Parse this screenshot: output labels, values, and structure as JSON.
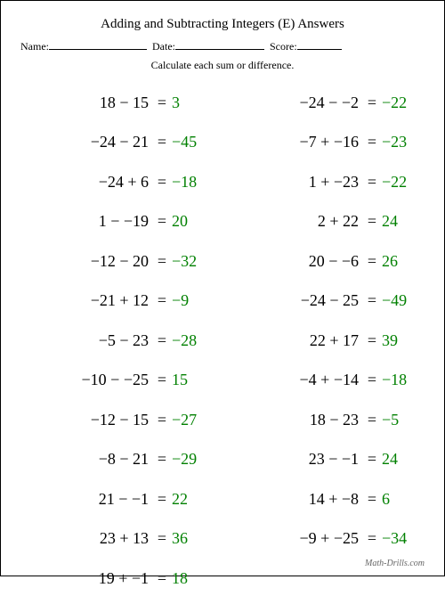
{
  "title": "Adding and Subtracting Integers (E) Answers",
  "labels": {
    "name": "Name:",
    "date": "Date:",
    "score": "Score:"
  },
  "instructions": "Calculate each sum or difference.",
  "answer_color": "#008000",
  "text_color": "#000000",
  "left_problems": [
    {
      "a": "18",
      "op": "−",
      "b": "15",
      "ans": "3"
    },
    {
      "a": "−24",
      "op": "−",
      "b": "21",
      "ans": "−45"
    },
    {
      "a": "−24",
      "op": "+",
      "b": "6",
      "ans": "−18"
    },
    {
      "a": "1",
      "op": "−",
      "b": "−19",
      "ans": "20"
    },
    {
      "a": "−12",
      "op": "−",
      "b": "20",
      "ans": "−32"
    },
    {
      "a": "−21",
      "op": "+",
      "b": "12",
      "ans": "−9"
    },
    {
      "a": "−5",
      "op": "−",
      "b": "23",
      "ans": "−28"
    },
    {
      "a": "−10",
      "op": "−",
      "b": "−25",
      "ans": "15"
    },
    {
      "a": "−12",
      "op": "−",
      "b": "15",
      "ans": "−27"
    },
    {
      "a": "−8",
      "op": "−",
      "b": "21",
      "ans": "−29"
    },
    {
      "a": "21",
      "op": "−",
      "b": "−1",
      "ans": "22"
    },
    {
      "a": "23",
      "op": "+",
      "b": "13",
      "ans": "36"
    },
    {
      "a": "19",
      "op": "+",
      "b": "−1",
      "ans": "18"
    }
  ],
  "right_problems": [
    {
      "a": "−24",
      "op": "−",
      "b": "−2",
      "ans": "−22"
    },
    {
      "a": "−7",
      "op": "+",
      "b": "−16",
      "ans": "−23"
    },
    {
      "a": "1",
      "op": "+",
      "b": "−23",
      "ans": "−22"
    },
    {
      "a": "2",
      "op": "+",
      "b": "22",
      "ans": "24"
    },
    {
      "a": "20",
      "op": "−",
      "b": "−6",
      "ans": "26"
    },
    {
      "a": "−24",
      "op": "−",
      "b": "25",
      "ans": "−49"
    },
    {
      "a": "22",
      "op": "+",
      "b": "17",
      "ans": "39"
    },
    {
      "a": "−4",
      "op": "+",
      "b": "−14",
      "ans": "−18"
    },
    {
      "a": "18",
      "op": "−",
      "b": "23",
      "ans": "−5"
    },
    {
      "a": "23",
      "op": "−",
      "b": "−1",
      "ans": "24"
    },
    {
      "a": "14",
      "op": "+",
      "b": "−8",
      "ans": "6"
    },
    {
      "a": "−9",
      "op": "+",
      "b": "−25",
      "ans": "−34"
    }
  ],
  "footer": "Math-Drills.com"
}
